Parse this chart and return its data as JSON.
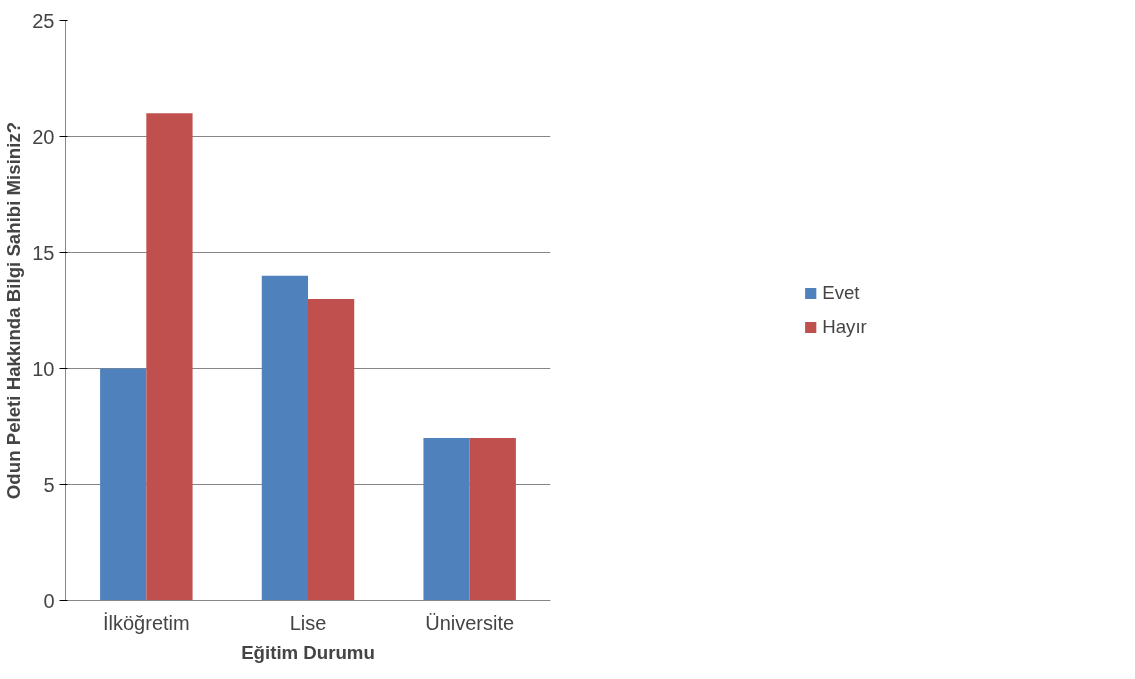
{
  "chart_data": {
    "type": "bar",
    "xlabel": "Eğitim Durumu",
    "ylabel": "Odun Peleti Hakkında Bilgi Sahibi Misiniz?",
    "categories": [
      "İlköğretim",
      "Lise",
      "Üniversite"
    ],
    "series": [
      {
        "name": "Evet",
        "color": "#4f81bd",
        "values": [
          10,
          14,
          7
        ]
      },
      {
        "name": "Hayır",
        "color": "#c0504d",
        "values": [
          21,
          13,
          7
        ]
      }
    ],
    "ylim": [
      0,
      25
    ],
    "yticks": [
      0,
      5,
      10,
      15,
      20,
      25
    ],
    "grid": "y",
    "legend": "right"
  }
}
